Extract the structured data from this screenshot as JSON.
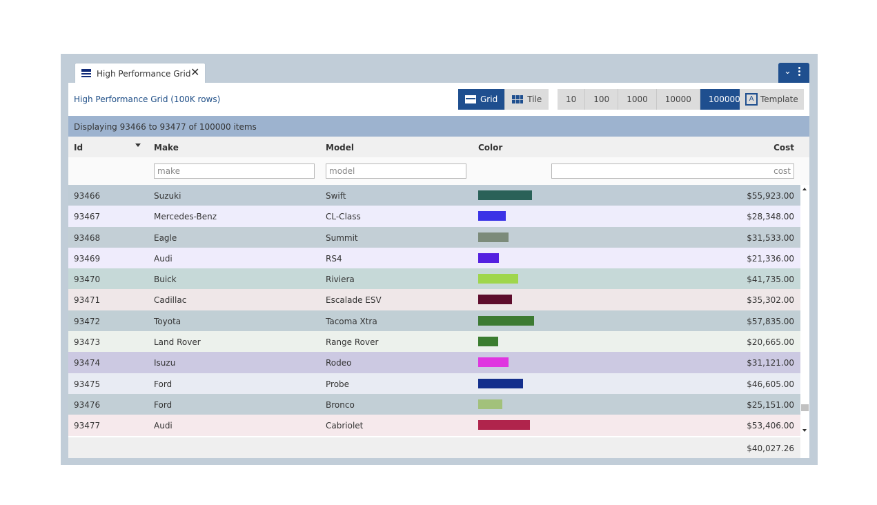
{
  "tab": {
    "title": "High Performance Grid"
  },
  "toolbar": {
    "title": "High Performance Grid (100K rows)",
    "views": [
      {
        "label": "Grid",
        "active": true
      },
      {
        "label": "Tile",
        "active": false
      }
    ],
    "counts": [
      {
        "label": "10"
      },
      {
        "label": "100"
      },
      {
        "label": "1000"
      },
      {
        "label": "10000"
      },
      {
        "label": "100000",
        "active": true
      }
    ],
    "template_label": "Template"
  },
  "status": {
    "text": "Displaying 93466 to 93477 of 100000 items"
  },
  "columns": {
    "id": "Id",
    "make": "Make",
    "model": "Model",
    "color": "Color",
    "cost": "Cost"
  },
  "filters": {
    "make_placeholder": "make",
    "model_placeholder": "model",
    "cost_placeholder": "cost"
  },
  "rows": [
    {
      "id": "93466",
      "make": "Suzuki",
      "model": "Swift",
      "cost": "$55,923.00",
      "swatch": "#2a6158",
      "level": 0.55923,
      "bg": "#bfccd6"
    },
    {
      "id": "93467",
      "make": "Mercedes-Benz",
      "model": "CL-Class",
      "cost": "$28,348.00",
      "swatch": "#3b33e6",
      "level": 0.28348,
      "bg": "#eeedfc"
    },
    {
      "id": "93468",
      "make": "Eagle",
      "model": "Summit",
      "cost": "$31,533.00",
      "swatch": "#7c8b7a",
      "level": 0.31533,
      "bg": "#c3cfd6"
    },
    {
      "id": "93469",
      "make": "Audi",
      "model": "RS4",
      "cost": "$21,336.00",
      "swatch": "#5420e0",
      "level": 0.21336,
      "bg": "#efecfc"
    },
    {
      "id": "93470",
      "make": "Buick",
      "model": "Riviera",
      "cost": "$41,735.00",
      "swatch": "#9fd64c",
      "level": 0.41735,
      "bg": "#c6d9d8"
    },
    {
      "id": "93471",
      "make": "Cadillac",
      "model": "Escalade ESV",
      "cost": "$35,302.00",
      "swatch": "#5e0d2c",
      "level": 0.35302,
      "bg": "#efe7e8"
    },
    {
      "id": "93472",
      "make": "Toyota",
      "model": "Tacoma Xtra",
      "cost": "$57,835.00",
      "swatch": "#3c7a32",
      "level": 0.57835,
      "bg": "#c1cfd5"
    },
    {
      "id": "93473",
      "make": "Land Rover",
      "model": "Range Rover",
      "cost": "$20,665.00",
      "swatch": "#3b7d30",
      "level": 0.20665,
      "bg": "#ecf1ec"
    },
    {
      "id": "93474",
      "make": "Isuzu",
      "model": "Rodeo",
      "cost": "$31,121.00",
      "swatch": "#e035e0",
      "level": 0.31121,
      "bg": "#ccc9e2"
    },
    {
      "id": "93475",
      "make": "Ford",
      "model": "Probe",
      "cost": "$46,605.00",
      "swatch": "#142f8c",
      "level": 0.46605,
      "bg": "#e8ebf3"
    },
    {
      "id": "93476",
      "make": "Ford",
      "model": "Bronco",
      "cost": "$25,151.00",
      "swatch": "#a2c17b",
      "level": 0.25151,
      "bg": "#c2cfd6"
    },
    {
      "id": "93477",
      "make": "Audi",
      "model": "Cabriolet",
      "cost": "$53,406.00",
      "swatch": "#b0244c",
      "level": 0.53406,
      "bg": "#f6e9ec"
    }
  ],
  "footer": {
    "total": "$40,027.26"
  }
}
